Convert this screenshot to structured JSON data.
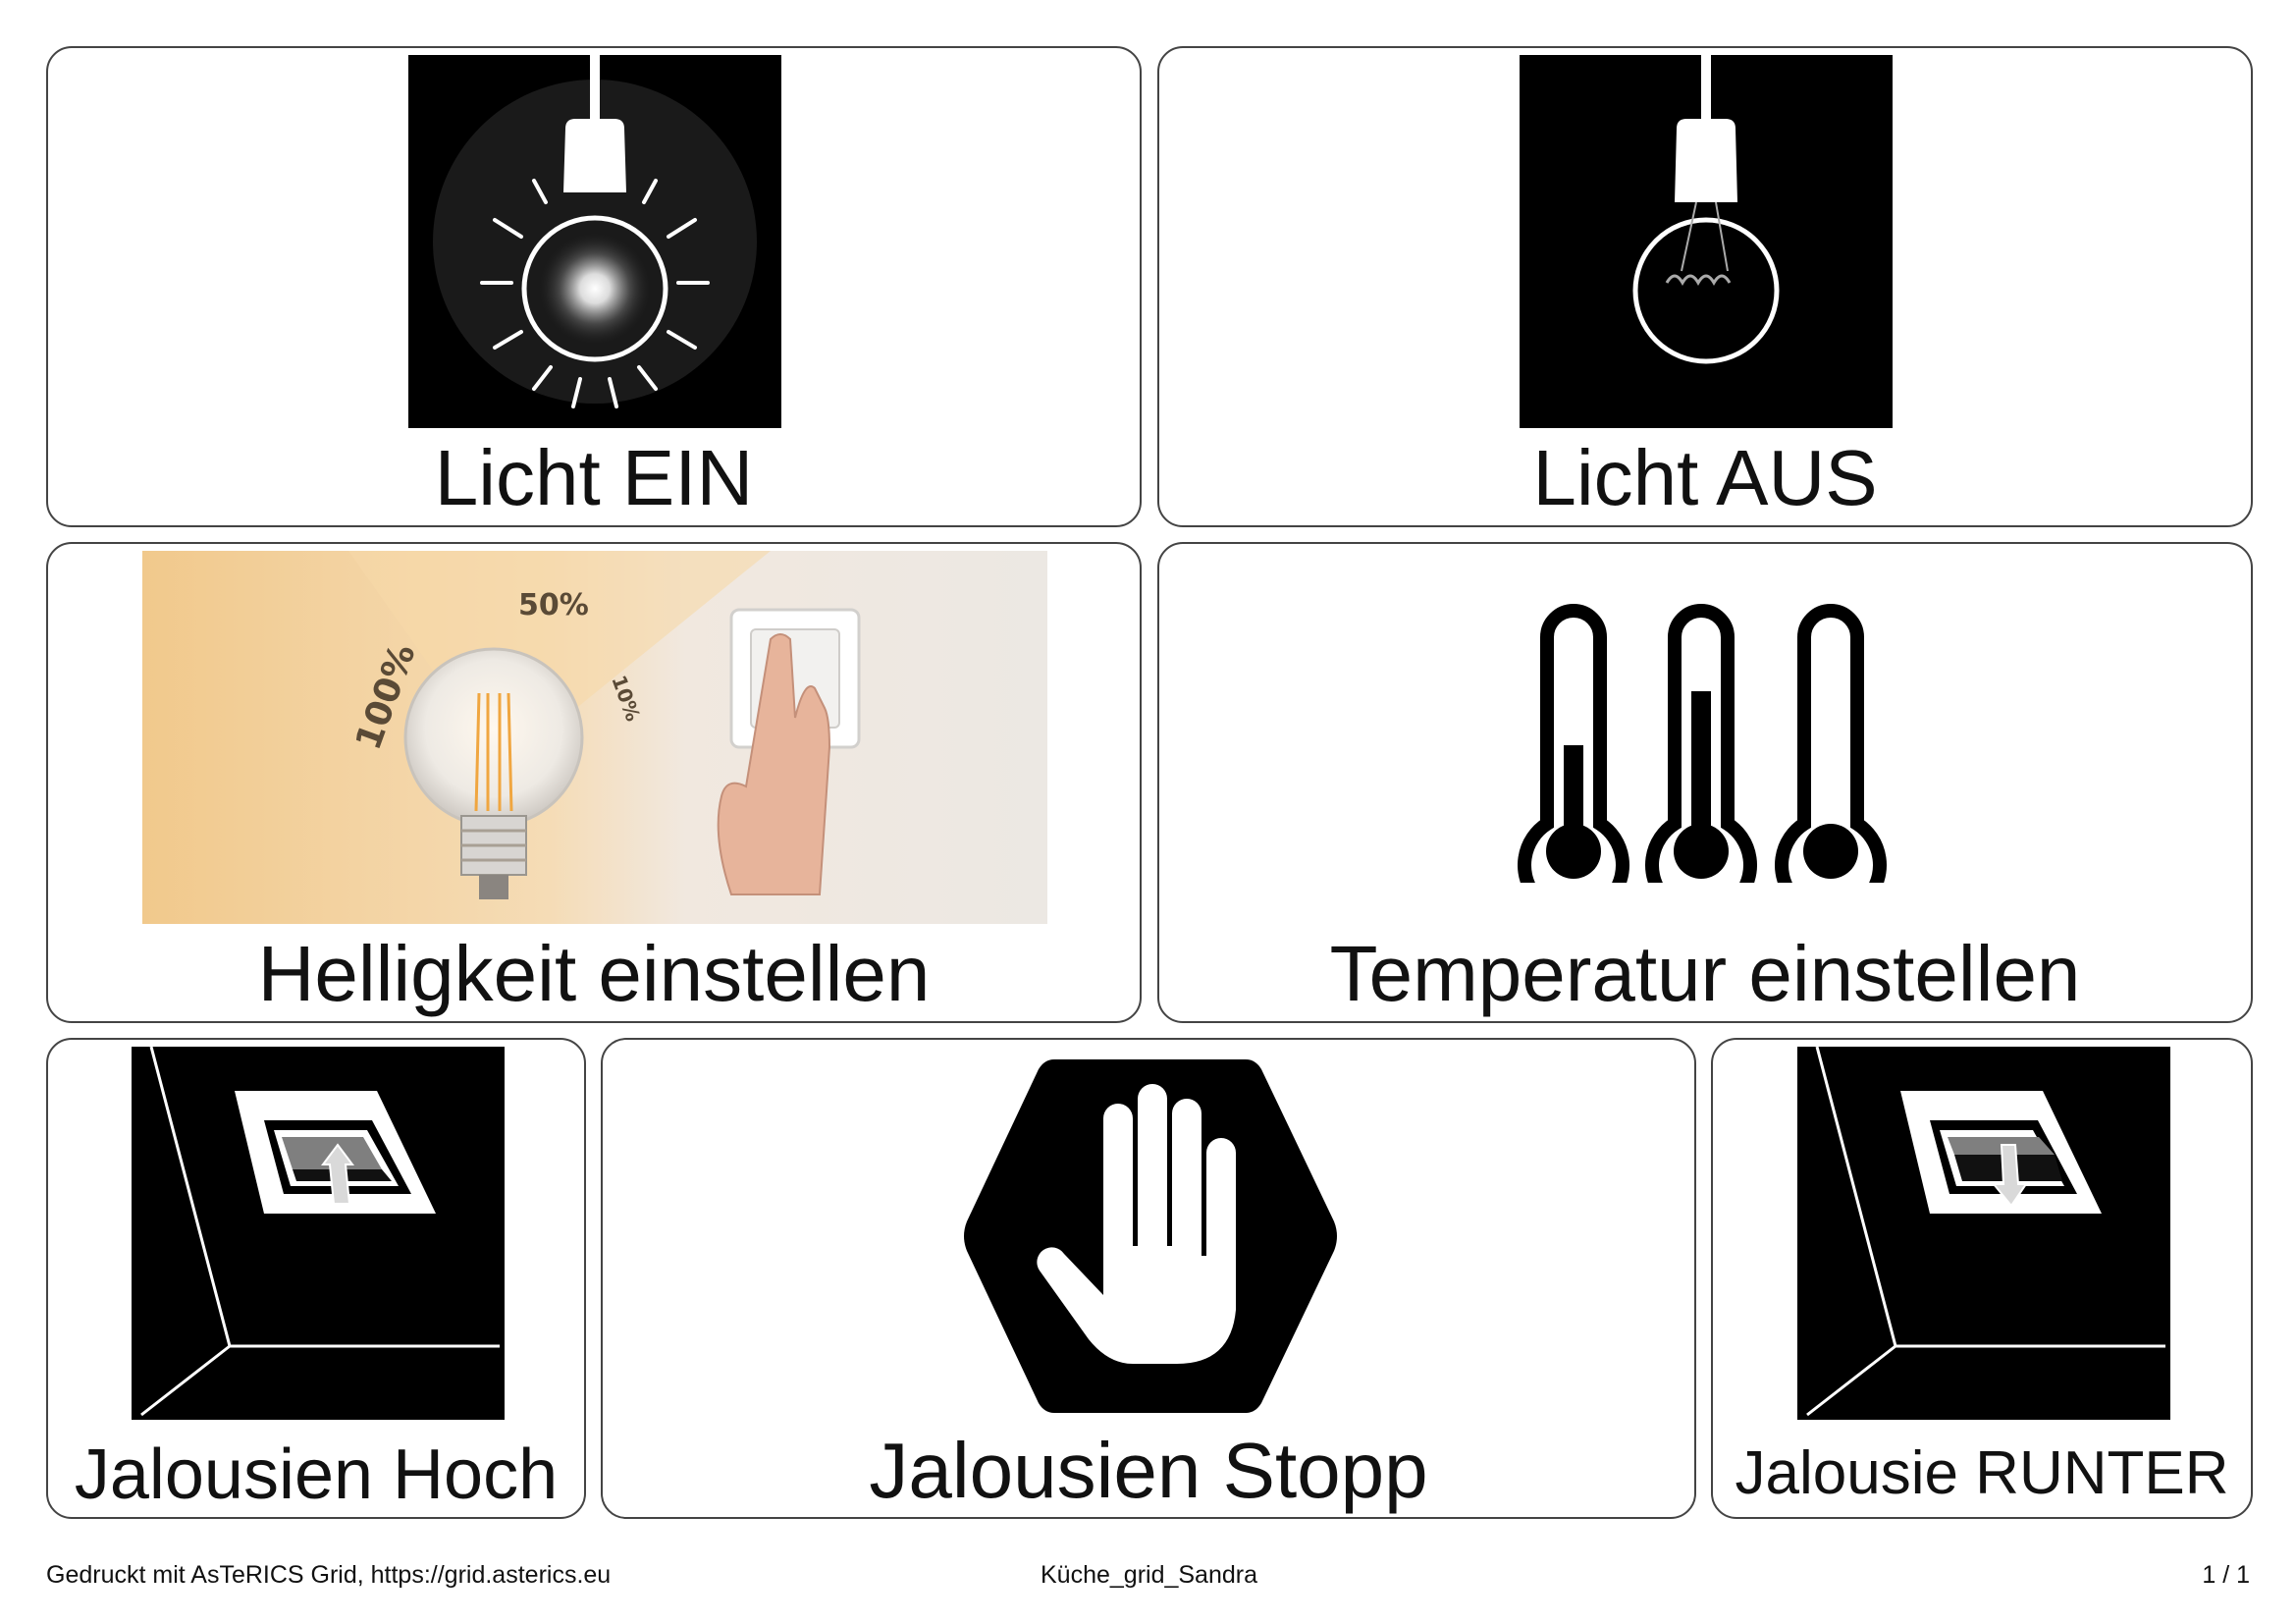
{
  "grid": {
    "cells": [
      {
        "label": "Licht EIN",
        "icon": "light-bulb-on-icon"
      },
      {
        "label": "Licht AUS",
        "icon": "light-bulb-off-icon"
      },
      {
        "label": "Helligkeit einstellen",
        "icon": "brightness-dimmer-photo",
        "photo_text": {
          "p100": "100%",
          "p50": "50%",
          "p10": "10%"
        }
      },
      {
        "label": "Temperatur einstellen",
        "icon": "thermometers-icon",
        "levels": [
          0.5,
          0.75,
          0.0
        ]
      },
      {
        "label": "Jalousien Hoch",
        "icon": "blinds-up-icon"
      },
      {
        "label": "Jalousien Stopp",
        "icon": "stop-hand-icon"
      },
      {
        "label": "Jalousie RUNTER",
        "icon": "blinds-down-icon"
      }
    ]
  },
  "footer": {
    "left": "Gedruckt mit AsTeRICS Grid, https://grid.asterics.eu",
    "center": "Küche_grid_Sandra",
    "right": "1 / 1"
  }
}
